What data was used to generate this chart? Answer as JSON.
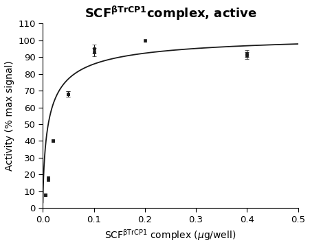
{
  "ylabel": "Activity (% max signal)",
  "xlim": [
    0,
    0.5
  ],
  "ylim": [
    0,
    110
  ],
  "xticks": [
    0.0,
    0.1,
    0.2,
    0.3,
    0.4,
    0.5
  ],
  "yticks": [
    0,
    10,
    20,
    30,
    40,
    50,
    60,
    70,
    80,
    90,
    100,
    110
  ],
  "data_x": [
    0.005,
    0.005,
    0.01,
    0.01,
    0.02,
    0.02,
    0.05,
    0.05,
    0.1,
    0.1,
    0.2,
    0.4,
    0.4
  ],
  "data_y": [
    8,
    8,
    18,
    17,
    40,
    40,
    68,
    68,
    95,
    93,
    100,
    91,
    92
  ],
  "data_yerr": [
    0,
    0,
    0,
    0,
    0,
    0,
    1.5,
    1.5,
    2.5,
    2.5,
    0,
    2.0,
    2.0
  ],
  "hill_vmax": 104.5,
  "hill_km": 0.012,
  "hill_n": 0.72,
  "curve_color": "#1a1a1a",
  "marker_color": "#1a1a1a",
  "background_color": "#ffffff",
  "marker_size": 3.5,
  "line_width": 1.3,
  "title_fontsize": 13,
  "label_fontsize": 10,
  "tick_fontsize": 9.5
}
